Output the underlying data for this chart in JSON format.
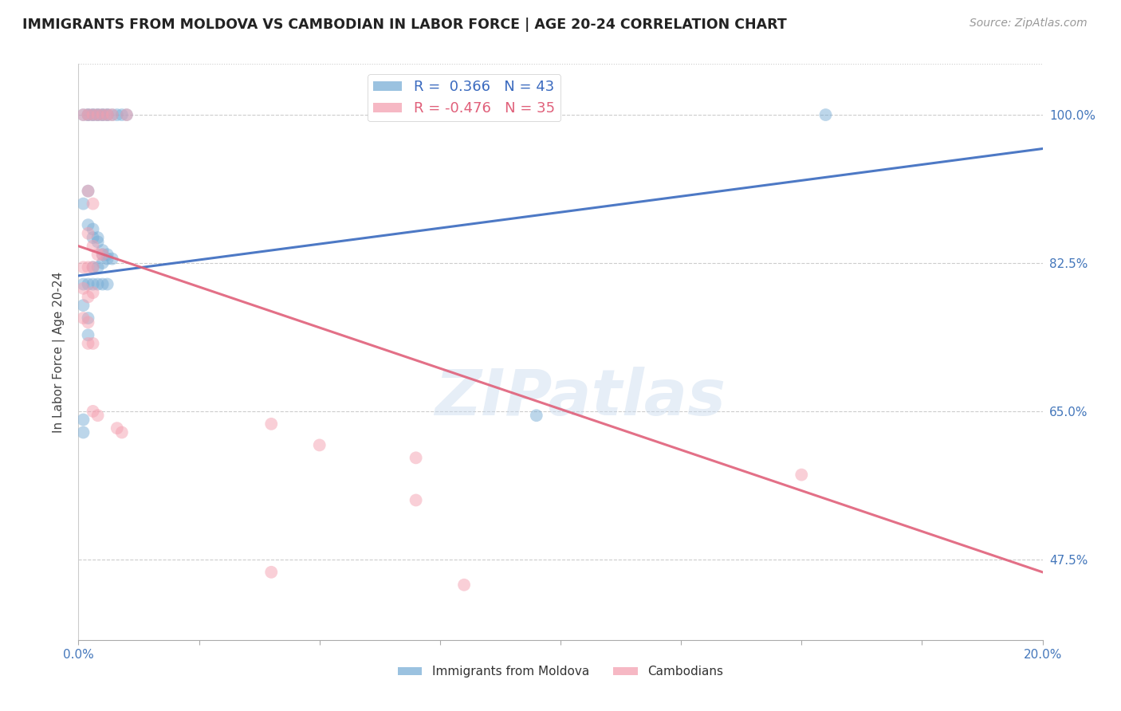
{
  "title": "IMMIGRANTS FROM MOLDOVA VS CAMBODIAN IN LABOR FORCE | AGE 20-24 CORRELATION CHART",
  "source": "Source: ZipAtlas.com",
  "ylabel": "In Labor Force | Age 20-24",
  "ytick_labels": [
    "100.0%",
    "82.5%",
    "65.0%",
    "47.5%"
  ],
  "ytick_values": [
    1.0,
    0.825,
    0.65,
    0.475
  ],
  "xlim": [
    0.0,
    0.2
  ],
  "ylim": [
    0.38,
    1.06
  ],
  "legend1_label": "R =  0.366   N = 43",
  "legend2_label": "R = -0.476   N = 35",
  "legend1_color": "#7aaed6",
  "legend2_color": "#f4a0b0",
  "blue_line_color": "#3a6abf",
  "pink_line_color": "#e0607a",
  "watermark": "ZIPatlas",
  "blue_scatter": [
    [
      0.001,
      1.0
    ],
    [
      0.002,
      1.0
    ],
    [
      0.002,
      1.0
    ],
    [
      0.003,
      1.0
    ],
    [
      0.003,
      1.0
    ],
    [
      0.004,
      1.0
    ],
    [
      0.004,
      1.0
    ],
    [
      0.005,
      1.0
    ],
    [
      0.005,
      1.0
    ],
    [
      0.006,
      1.0
    ],
    [
      0.006,
      1.0
    ],
    [
      0.007,
      1.0
    ],
    [
      0.008,
      1.0
    ],
    [
      0.009,
      1.0
    ],
    [
      0.01,
      1.0
    ],
    [
      0.001,
      0.895
    ],
    [
      0.002,
      0.91
    ],
    [
      0.002,
      0.87
    ],
    [
      0.003,
      0.865
    ],
    [
      0.003,
      0.855
    ],
    [
      0.004,
      0.855
    ],
    [
      0.004,
      0.85
    ],
    [
      0.005,
      0.84
    ],
    [
      0.005,
      0.835
    ],
    [
      0.006,
      0.835
    ],
    [
      0.006,
      0.83
    ],
    [
      0.007,
      0.83
    ],
    [
      0.003,
      0.82
    ],
    [
      0.004,
      0.82
    ],
    [
      0.005,
      0.825
    ],
    [
      0.001,
      0.8
    ],
    [
      0.002,
      0.8
    ],
    [
      0.003,
      0.8
    ],
    [
      0.004,
      0.8
    ],
    [
      0.005,
      0.8
    ],
    [
      0.006,
      0.8
    ],
    [
      0.001,
      0.775
    ],
    [
      0.002,
      0.76
    ],
    [
      0.002,
      0.74
    ],
    [
      0.001,
      0.64
    ],
    [
      0.001,
      0.625
    ],
    [
      0.095,
      0.645
    ],
    [
      0.155,
      1.0
    ]
  ],
  "pink_scatter": [
    [
      0.001,
      1.0
    ],
    [
      0.002,
      1.0
    ],
    [
      0.003,
      1.0
    ],
    [
      0.004,
      1.0
    ],
    [
      0.005,
      1.0
    ],
    [
      0.006,
      1.0
    ],
    [
      0.007,
      1.0
    ],
    [
      0.01,
      1.0
    ],
    [
      0.002,
      0.91
    ],
    [
      0.003,
      0.895
    ],
    [
      0.002,
      0.86
    ],
    [
      0.003,
      0.845
    ],
    [
      0.004,
      0.835
    ],
    [
      0.005,
      0.835
    ],
    [
      0.001,
      0.82
    ],
    [
      0.002,
      0.82
    ],
    [
      0.003,
      0.82
    ],
    [
      0.001,
      0.795
    ],
    [
      0.002,
      0.785
    ],
    [
      0.003,
      0.79
    ],
    [
      0.001,
      0.76
    ],
    [
      0.002,
      0.755
    ],
    [
      0.002,
      0.73
    ],
    [
      0.003,
      0.73
    ],
    [
      0.003,
      0.65
    ],
    [
      0.004,
      0.645
    ],
    [
      0.008,
      0.63
    ],
    [
      0.009,
      0.625
    ],
    [
      0.04,
      0.635
    ],
    [
      0.05,
      0.61
    ],
    [
      0.07,
      0.595
    ],
    [
      0.07,
      0.545
    ],
    [
      0.15,
      0.575
    ],
    [
      0.04,
      0.46
    ],
    [
      0.08,
      0.445
    ]
  ],
  "blue_line_x": [
    0.0,
    0.2
  ],
  "blue_line_y": [
    0.81,
    0.96
  ],
  "pink_line_x": [
    0.0,
    0.2
  ],
  "pink_line_y": [
    0.845,
    0.46
  ],
  "scatter_size": 130,
  "scatter_alpha": 0.5,
  "line_alpha": 0.9,
  "line_width": 2.2
}
